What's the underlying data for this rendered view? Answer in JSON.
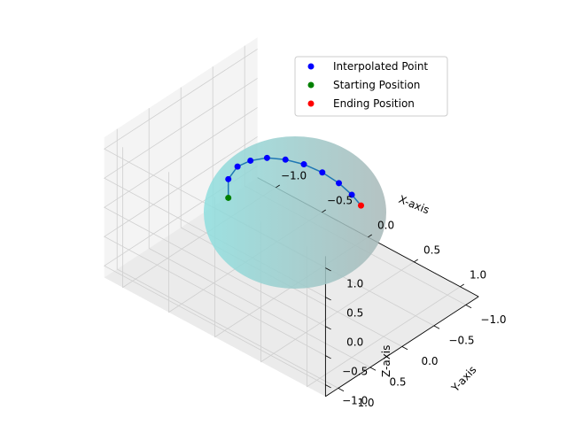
{
  "chart_data": {
    "type": "scatter",
    "projection": "3d",
    "xlabel": "X-axis",
    "ylabel": "Y-axis",
    "zlabel": "Z-axis",
    "xlim": [
      -1.0,
      1.0
    ],
    "ylim": [
      -1.0,
      1.0
    ],
    "zlim": [
      -1.0,
      1.0
    ],
    "x_ticks": [
      "−1.0",
      "−0.5",
      "0.0",
      "0.5",
      "1.0"
    ],
    "y_ticks": [
      "−1.0",
      "−0.5",
      "0.0",
      "0.5",
      "1.0"
    ],
    "z_ticks": [
      "−1.0",
      "−0.5",
      "0.0",
      "0.5",
      "1.0"
    ],
    "grid": true,
    "legend_placement": "upper-right",
    "surface": {
      "kind": "unit-sphere",
      "colors": [
        "#8fdfdf",
        "#a8b8b8"
      ]
    },
    "series": [
      {
        "name": "Interpolated Point",
        "color": "#0000ff",
        "points": [
          [
            -0.72,
            -0.05,
            0.0
          ],
          [
            -0.62,
            -0.05,
            0.3
          ],
          [
            -0.48,
            -0.05,
            0.52
          ],
          [
            -0.3,
            -0.05,
            0.72
          ],
          [
            -0.1,
            -0.05,
            0.86
          ],
          [
            0.1,
            -0.05,
            0.95
          ],
          [
            0.3,
            -0.05,
            0.98
          ],
          [
            0.48,
            -0.05,
            0.95
          ],
          [
            0.62,
            -0.05,
            0.87
          ]
        ]
      },
      {
        "name": "Starting Position",
        "color": "#008000",
        "points": [
          [
            -0.72,
            -0.05,
            -0.32
          ]
        ]
      },
      {
        "name": "Ending Position",
        "color": "#ff0000",
        "points": [
          [
            0.72,
            -0.05,
            0.77
          ]
        ]
      }
    ],
    "path_line_color": "#1f77b4"
  }
}
